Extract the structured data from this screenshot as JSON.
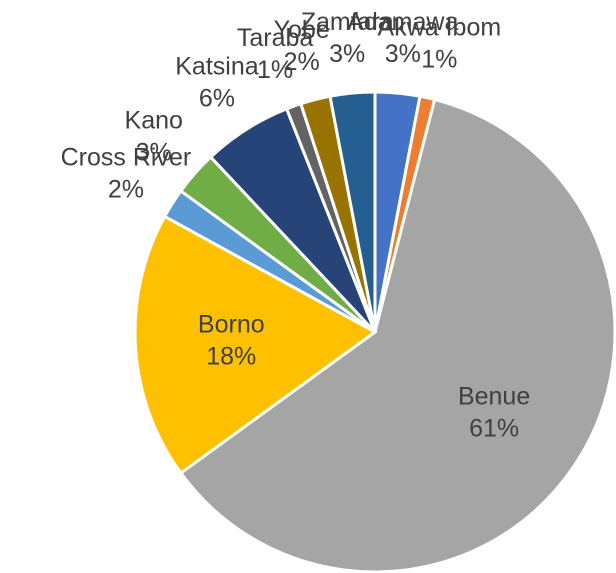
{
  "chart_data": {
    "type": "pie",
    "categories": [
      "Adamawa",
      "Akwa Ibom",
      "Benue",
      "Borno",
      "Cross River",
      "Kano",
      "Katsina",
      "Taraba",
      "Yobe",
      "Zamfara"
    ],
    "values": [
      3,
      1,
      61,
      18,
      2,
      3,
      6,
      1,
      2,
      3
    ],
    "value_labels": [
      "3%",
      "1%",
      "61%",
      "18%",
      "2%",
      "3%",
      "6%",
      "1%",
      "2%",
      "3%"
    ],
    "colors": [
      "#4472c4",
      "#ed7d31",
      "#a5a5a5",
      "#ffc000",
      "#5b9bd5",
      "#70ad47",
      "#264478",
      "#636363",
      "#997300",
      "#255e91"
    ]
  }
}
